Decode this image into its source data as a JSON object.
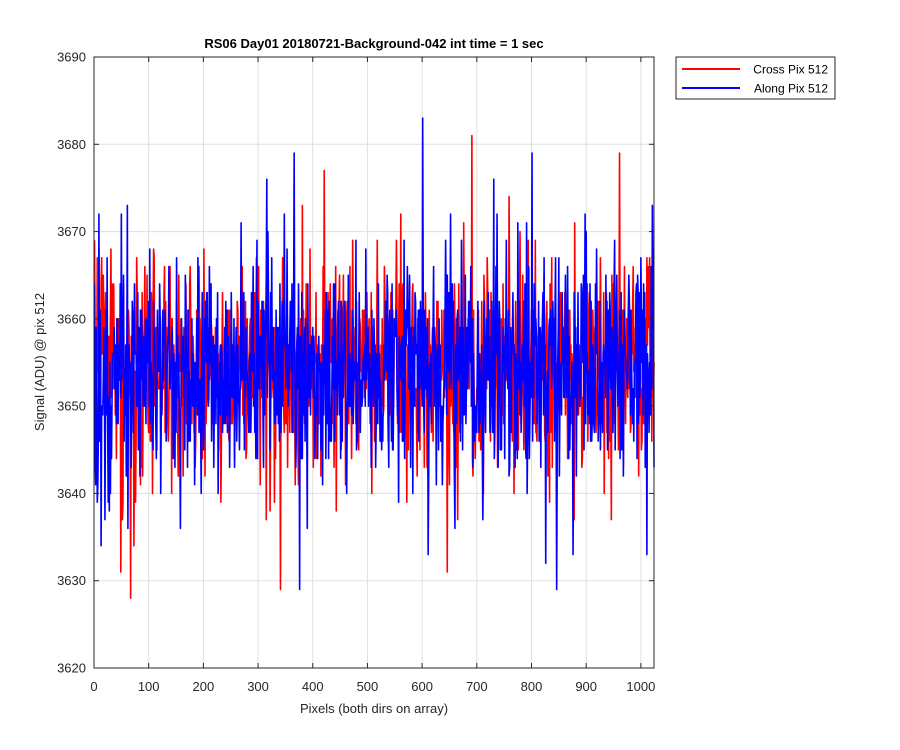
{
  "chart_data": {
    "type": "line",
    "title": "RS06 Day01 20180721-Background-042 int time = 1 sec",
    "xlabel": "Pixels (both dirs on array)",
    "ylabel": "Signal (ADU) @ pix 512",
    "xlim": [
      0,
      1024
    ],
    "ylim": [
      3620,
      3690
    ],
    "xticks": [
      0,
      100,
      200,
      300,
      400,
      500,
      600,
      700,
      800,
      900,
      1000
    ],
    "yticks": [
      3620,
      3630,
      3640,
      3650,
      3660,
      3670,
      3680,
      3690
    ],
    "grid": true,
    "legend_position": "outside top-right",
    "n_points": 1024,
    "series": [
      {
        "name": "Cross Pix 512",
        "color": "#ff0000",
        "mean": 3654.5,
        "std": 6.2,
        "marked_points": [
          {
            "x": 30,
            "y": 3668
          },
          {
            "x": 48,
            "y": 3631
          },
          {
            "x": 66,
            "y": 3628
          },
          {
            "x": 72,
            "y": 3634
          },
          {
            "x": 108,
            "y": 3668
          },
          {
            "x": 340,
            "y": 3629
          },
          {
            "x": 380,
            "y": 3673
          },
          {
            "x": 420,
            "y": 3677
          },
          {
            "x": 560,
            "y": 3672
          },
          {
            "x": 645,
            "y": 3631
          },
          {
            "x": 690,
            "y": 3681
          },
          {
            "x": 758,
            "y": 3674
          },
          {
            "x": 960,
            "y": 3679
          }
        ]
      },
      {
        "name": "Along Pix 512",
        "color": "#0000ff",
        "mean": 3654.0,
        "std": 6.5,
        "marked_points": [
          {
            "x": 12,
            "y": 3634
          },
          {
            "x": 60,
            "y": 3673
          },
          {
            "x": 315,
            "y": 3676
          },
          {
            "x": 365,
            "y": 3679
          },
          {
            "x": 375,
            "y": 3629
          },
          {
            "x": 600,
            "y": 3683
          },
          {
            "x": 610,
            "y": 3633
          },
          {
            "x": 730,
            "y": 3676
          },
          {
            "x": 800,
            "y": 3679
          },
          {
            "x": 825,
            "y": 3632
          },
          {
            "x": 845,
            "y": 3629
          },
          {
            "x": 875,
            "y": 3633
          },
          {
            "x": 1020,
            "y": 3673
          },
          {
            "x": 1010,
            "y": 3633
          }
        ]
      }
    ]
  }
}
